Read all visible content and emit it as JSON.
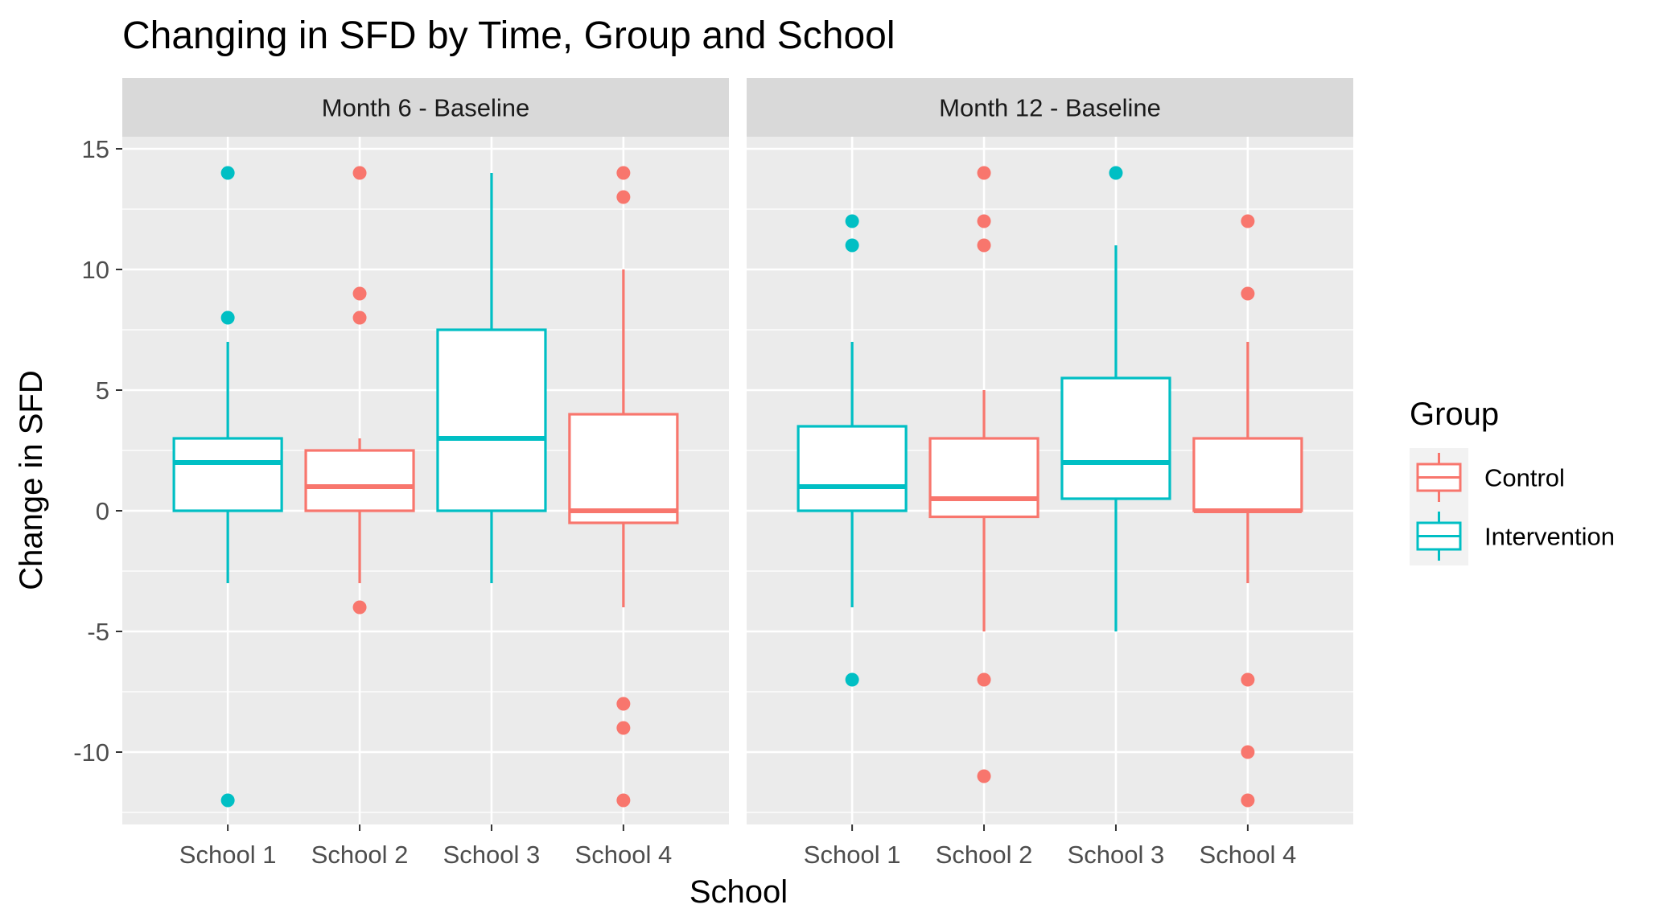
{
  "chart_data": {
    "type": "boxplot",
    "title": "Changing in SFD by Time, Group and School",
    "xlabel": "School",
    "ylabel": "Change in SFD",
    "ylim": [
      -13,
      15.5
    ],
    "yticks": [
      15,
      10,
      5,
      0,
      -5,
      -10
    ],
    "ytick_labels": [
      "15",
      "10",
      "5",
      "0",
      "-5",
      "-10"
    ],
    "categories": [
      "School 1",
      "School 2",
      "School 3",
      "School 4"
    ],
    "grid": true,
    "legend": {
      "title": "Group",
      "position": "right",
      "entries": [
        {
          "name": "Control",
          "color": "#F8766D"
        },
        {
          "name": "Intervention",
          "color": "#00BFC4"
        }
      ]
    },
    "panels": [
      {
        "label": "Month 6 - Baseline",
        "boxes": [
          {
            "category": "School 1",
            "group": "Intervention",
            "whisker_low": -3,
            "q1": 0,
            "median": 2,
            "q3": 3,
            "whisker_high": 7,
            "outliers": [
              14,
              8,
              -12
            ]
          },
          {
            "category": "School 2",
            "group": "Control",
            "whisker_low": -3,
            "q1": 0,
            "median": 1,
            "q3": 2.5,
            "whisker_high": 3,
            "outliers": [
              14,
              9,
              8,
              -4
            ]
          },
          {
            "category": "School 3",
            "group": "Intervention",
            "whisker_low": -3,
            "q1": 0,
            "median": 3,
            "q3": 7.5,
            "whisker_high": 14,
            "outliers": []
          },
          {
            "category": "School 4",
            "group": "Control",
            "whisker_low": -4,
            "q1": -0.5,
            "median": 0,
            "q3": 4,
            "whisker_high": 10,
            "outliers": [
              14,
              13,
              -8,
              -9,
              -12
            ]
          }
        ]
      },
      {
        "label": "Month 12 - Baseline",
        "boxes": [
          {
            "category": "School 1",
            "group": "Intervention",
            "whisker_low": -4,
            "q1": 0,
            "median": 1,
            "q3": 3.5,
            "whisker_high": 7,
            "outliers": [
              12,
              11,
              -7
            ]
          },
          {
            "category": "School 2",
            "group": "Control",
            "whisker_low": -5,
            "q1": -0.25,
            "median": 0.5,
            "q3": 3,
            "whisker_high": 5,
            "outliers": [
              14,
              12,
              11,
              -7,
              -11
            ]
          },
          {
            "category": "School 3",
            "group": "Intervention",
            "whisker_low": -5,
            "q1": 0.5,
            "median": 2,
            "q3": 5.5,
            "whisker_high": 11,
            "outliers": [
              14
            ]
          },
          {
            "category": "School 4",
            "group": "Control",
            "whisker_low": -3,
            "q1": 0,
            "median": 0,
            "q3": 3,
            "whisker_high": 7,
            "outliers": [
              12,
              9,
              -7,
              -10,
              -12
            ]
          }
        ]
      }
    ]
  }
}
